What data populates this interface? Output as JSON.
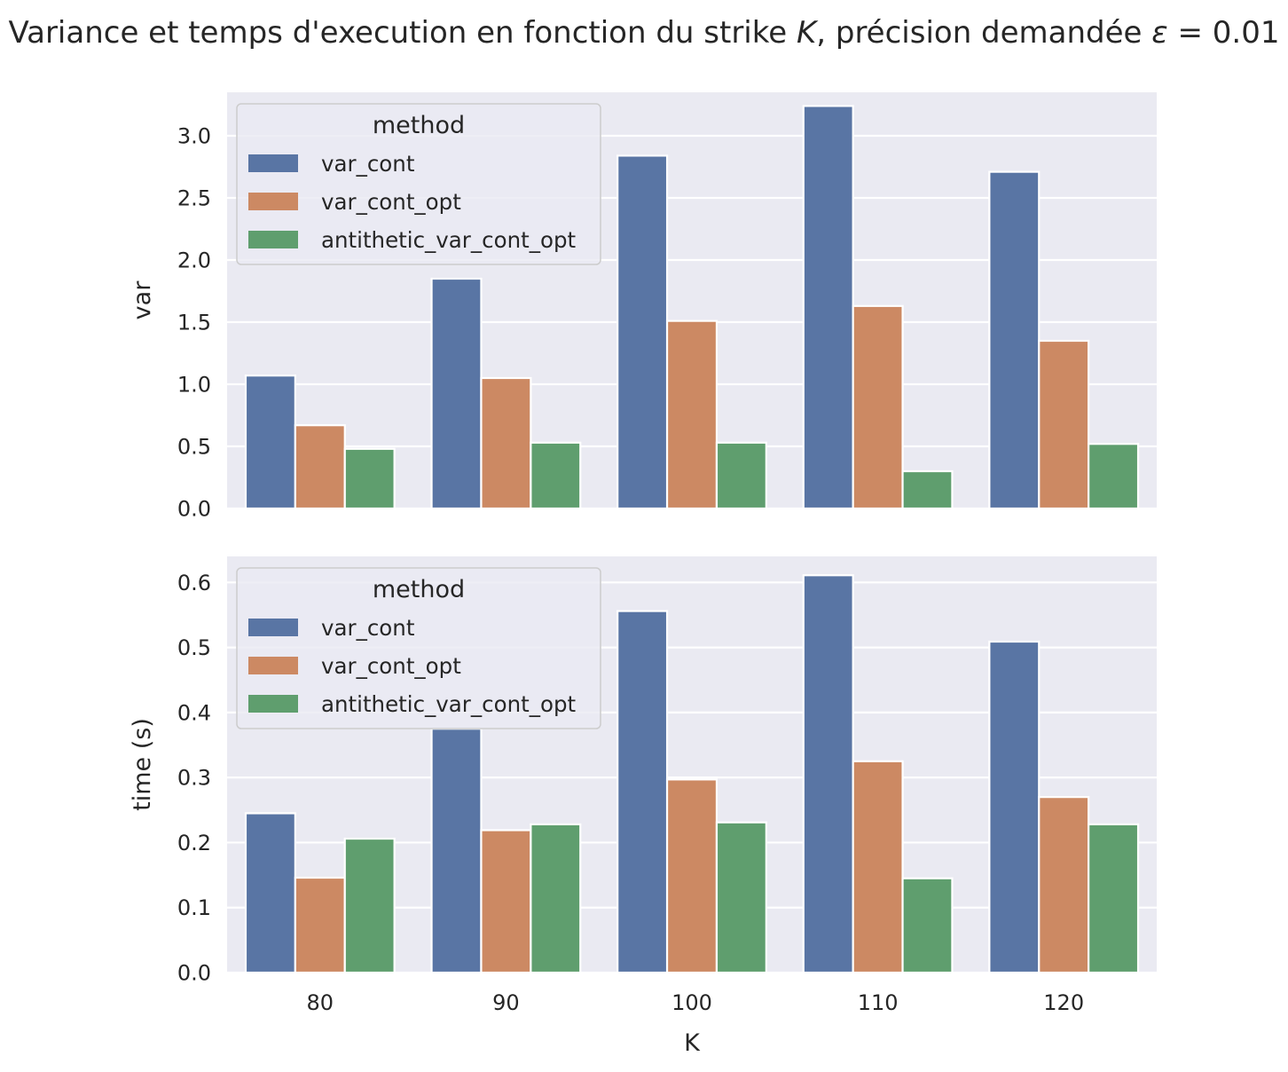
{
  "title_prefix": "Variance et temps d'execution en fonction du strike ",
  "title_K": "K",
  "title_mid": ", précision demandée ",
  "title_eps": "ε",
  "title_suffix": " = 0.01",
  "colors": {
    "var_cont": "#5975a4",
    "var_cont_opt": "#cc8963",
    "antithetic_var_cont_opt": "#5f9e6e",
    "plot_bg": "#eaeaf2",
    "grid": "#ffffff"
  },
  "chart_data": [
    {
      "type": "bar",
      "categories": [
        "80",
        "90",
        "100",
        "110",
        "120"
      ],
      "xlabel": "",
      "ylabel": "var",
      "ylim": [
        0,
        3.35
      ],
      "yticks": [
        "0.0",
        "0.5",
        "1.0",
        "1.5",
        "2.0",
        "2.5",
        "3.0"
      ],
      "grid": true,
      "legend": {
        "title": "method",
        "placement": "top-left"
      },
      "series": [
        {
          "name": "var_cont",
          "values": [
            1.07,
            1.85,
            2.84,
            3.24,
            2.71
          ]
        },
        {
          "name": "var_cont_opt",
          "values": [
            0.67,
            1.05,
            1.51,
            1.63,
            1.35
          ]
        },
        {
          "name": "antithetic_var_cont_opt",
          "values": [
            0.48,
            0.53,
            0.53,
            0.3,
            0.52
          ]
        }
      ]
    },
    {
      "type": "bar",
      "categories": [
        "80",
        "90",
        "100",
        "110",
        "120"
      ],
      "xlabel": "K",
      "ylabel": "time (s)",
      "ylim": [
        0,
        0.64
      ],
      "yticks": [
        "0.0",
        "0.1",
        "0.2",
        "0.3",
        "0.4",
        "0.5",
        "0.6"
      ],
      "grid": true,
      "legend": {
        "title": "method",
        "placement": "top-left"
      },
      "series": [
        {
          "name": "var_cont",
          "values": [
            0.245,
            0.375,
            0.556,
            0.611,
            0.509
          ]
        },
        {
          "name": "var_cont_opt",
          "values": [
            0.146,
            0.219,
            0.297,
            0.325,
            0.27
          ]
        },
        {
          "name": "antithetic_var_cont_opt",
          "values": [
            0.206,
            0.228,
            0.231,
            0.145,
            0.228
          ]
        }
      ]
    }
  ]
}
